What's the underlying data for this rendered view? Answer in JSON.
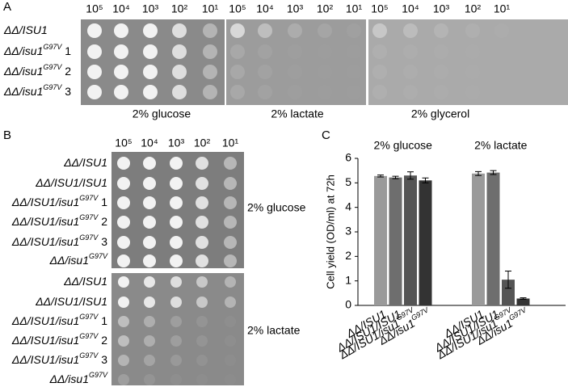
{
  "panel_a": {
    "label": "A",
    "dilutions": [
      "10⁵",
      "10⁴",
      "10³",
      "10²",
      "10¹"
    ],
    "strains": [
      {
        "text": "ΔΔ/ISU1"
      },
      {
        "text": "ΔΔ/isu1",
        "sup": "G97V",
        "suffix": " 1"
      },
      {
        "text": "ΔΔ/isu1",
        "sup": "G97V",
        "suffix": " 2"
      },
      {
        "text": "ΔΔ/isu1",
        "sup": "G97V",
        "suffix": " 3"
      }
    ],
    "conditions": [
      "2% glucose",
      "2% lactate",
      "2% glycerol"
    ]
  },
  "panel_b": {
    "label": "B",
    "dilutions": [
      "10⁵",
      "10⁴",
      "10³",
      "10²",
      "10¹"
    ],
    "strains": [
      {
        "text": "ΔΔ/ISU1"
      },
      {
        "text": "ΔΔ/ISU1/ISU1"
      },
      {
        "text": "ΔΔ/ISU1/isu1",
        "sup": "G97V",
        "suffix": " 1"
      },
      {
        "text": "ΔΔ/ISU1/isu1",
        "sup": "G97V",
        "suffix": " 2"
      },
      {
        "text": "ΔΔ/ISU1/isu1",
        "sup": "G97V",
        "suffix": " 3"
      },
      {
        "text": "ΔΔ/isu1",
        "sup": "G97V"
      }
    ],
    "conditions": [
      "2% glucose",
      "2% lactate"
    ]
  },
  "chart_data": {
    "type": "bar",
    "panel_label": "C",
    "ylabel": "Cell yield (OD/ml) at 72h",
    "groups": [
      "2% glucose",
      "2% lactate"
    ],
    "categories": [
      {
        "text": "ΔΔ/ISU1"
      },
      {
        "text": "ΔΔ/ISU1/ISU1"
      },
      {
        "text": "ΔΔ/ISU1/isu1",
        "sup": "G97V"
      },
      {
        "text": "ΔΔ/isu1",
        "sup": "G97V"
      },
      {
        "text": "ΔΔ/ISU1"
      },
      {
        "text": "ΔΔ/ISU1/ISU1"
      },
      {
        "text": "ΔΔ/ISU1/isu1",
        "sup": "G97V"
      },
      {
        "text": "ΔΔ/isu1",
        "sup": "G97V"
      }
    ],
    "values": [
      5.28,
      5.22,
      5.3,
      5.1,
      5.38,
      5.42,
      1.05,
      0.28
    ],
    "errors": [
      0.04,
      0.05,
      0.15,
      0.1,
      0.08,
      0.08,
      0.35,
      0.03
    ],
    "colors": [
      "#9a9a9a",
      "#6e6e6e",
      "#555555",
      "#333333",
      "#9a9a9a",
      "#6e6e6e",
      "#555555",
      "#333333"
    ],
    "ylim": [
      0,
      6
    ],
    "yticks": [
      0,
      1,
      2,
      3,
      4,
      5,
      6
    ]
  }
}
